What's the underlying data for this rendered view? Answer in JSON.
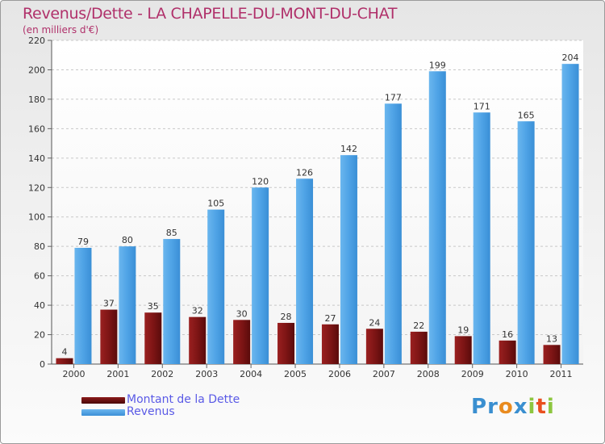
{
  "title": "Revenus/Dette - LA CHAPELLE-DU-MONT-DU-CHAT",
  "subtitle": "(en milliers d'€)",
  "chart_data": {
    "type": "bar",
    "categories": [
      "2000",
      "2001",
      "2002",
      "2003",
      "2004",
      "2005",
      "2006",
      "2007",
      "2008",
      "2009",
      "2010",
      "2011"
    ],
    "series": [
      {
        "name": "Montant de la Dette",
        "values": [
          4,
          37,
          35,
          32,
          30,
          28,
          27,
          24,
          22,
          19,
          16,
          13
        ],
        "color": "#7a1414"
      },
      {
        "name": "Revenus",
        "values": [
          79,
          80,
          85,
          105,
          120,
          126,
          142,
          177,
          199,
          171,
          165,
          204
        ],
        "color": "#4f9fdf"
      }
    ],
    "ylim": [
      0,
      220
    ],
    "yticks": [
      0,
      20,
      40,
      60,
      80,
      100,
      120,
      140,
      160,
      180,
      200,
      220
    ],
    "grid": true,
    "legend": "bottom-left"
  },
  "legend": [
    {
      "label": "Montant de la Dette",
      "color": "#6a0f0f"
    },
    {
      "label": "Revenus",
      "color": "#4aa0e6"
    }
  ],
  "logo": {
    "letters": [
      "P",
      "r",
      "o",
      "x",
      "i",
      "t",
      "i"
    ],
    "colors": [
      "#3a8fd0",
      "#3a8fd0",
      "#e98b1f",
      "#3a8fd0",
      "#8dc63f",
      "#e94f1f",
      "#8dc63f"
    ]
  }
}
